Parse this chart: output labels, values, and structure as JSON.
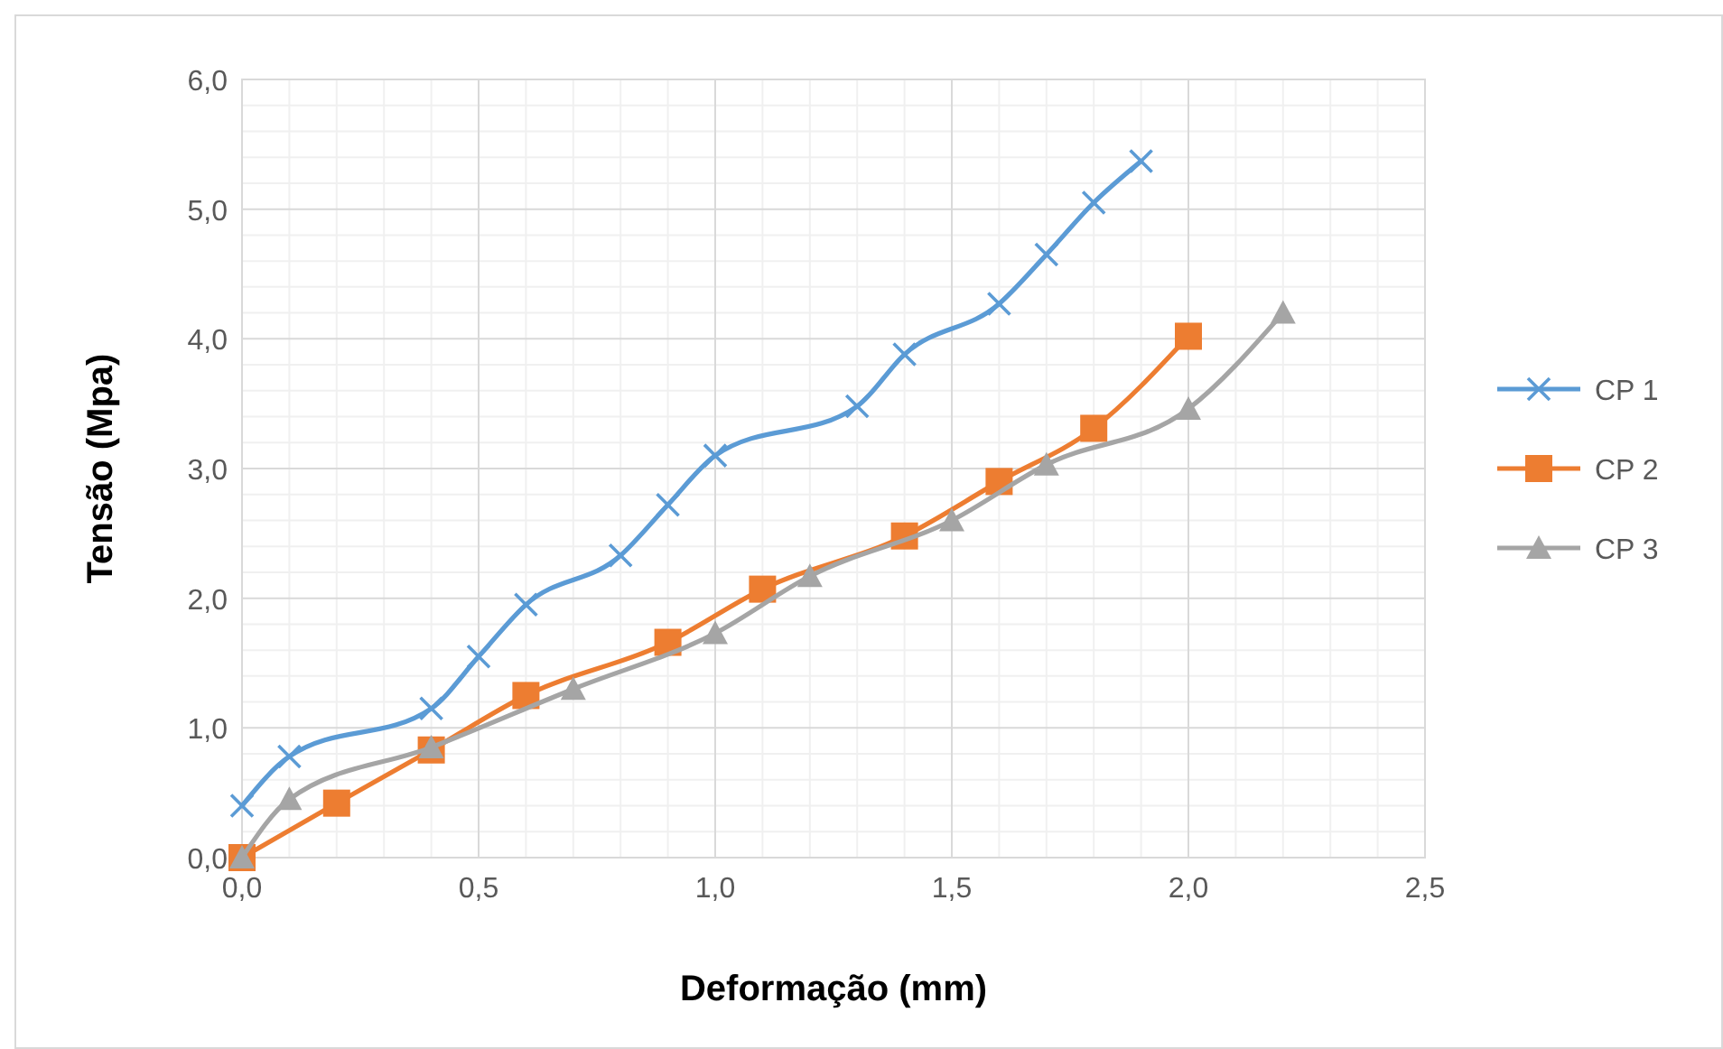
{
  "chart_data": {
    "type": "line",
    "xlabel": "Deformação (mm)",
    "ylabel": "Tensão (Mpa)",
    "xlim": [
      0,
      2.5
    ],
    "xticks": [
      {
        "value": 0,
        "label": "0,0"
      },
      {
        "value": 0.5,
        "label": "0,5"
      },
      {
        "value": 1,
        "label": "1,0"
      },
      {
        "value": 1.5,
        "label": "1,5"
      },
      {
        "value": 2,
        "label": "2,0"
      },
      {
        "value": 2.5,
        "label": "2,5"
      }
    ],
    "ylim": [
      0,
      6
    ],
    "yticks": [
      {
        "value": 0,
        "label": "0,0"
      },
      {
        "value": 1,
        "label": "1,0"
      },
      {
        "value": 2,
        "label": "2,0"
      },
      {
        "value": 3,
        "label": "3,0"
      },
      {
        "value": 4,
        "label": "4,0"
      },
      {
        "value": 5,
        "label": "5,0"
      },
      {
        "value": 6,
        "label": "6,0"
      }
    ],
    "grid": true,
    "legend": "right",
    "series": [
      {
        "name": "CP 1",
        "color": "#5b9bd5",
        "marker": "cross",
        "x": [
          0,
          0.1,
          0.4,
          0.5,
          0.6,
          0.8,
          0.9,
          1.0,
          1.3,
          1.4,
          1.6,
          1.7,
          1.8,
          1.9
        ],
        "values": [
          0.4,
          0.78,
          1.15,
          1.55,
          1.95,
          2.33,
          2.72,
          3.1,
          3.48,
          3.88,
          4.27,
          4.65,
          5.05,
          5.37
        ]
      },
      {
        "name": "CP 2",
        "color": "#ed7d31",
        "marker": "square",
        "x": [
          0,
          0.2,
          0.4,
          0.6,
          0.9,
          1.1,
          1.4,
          1.6,
          1.8,
          2.0
        ],
        "values": [
          0,
          0.42,
          0.83,
          1.25,
          1.66,
          2.07,
          2.48,
          2.9,
          3.31,
          4.02
        ]
      },
      {
        "name": "CP 3",
        "color": "#a5a5a5",
        "marker": "triangle",
        "x": [
          0,
          0.1,
          0.4,
          0.7,
          1.0,
          1.2,
          1.5,
          1.7,
          2.0,
          2.2
        ],
        "values": [
          0,
          0.45,
          0.85,
          1.3,
          1.73,
          2.17,
          2.6,
          3.03,
          3.46,
          4.2
        ]
      }
    ]
  }
}
